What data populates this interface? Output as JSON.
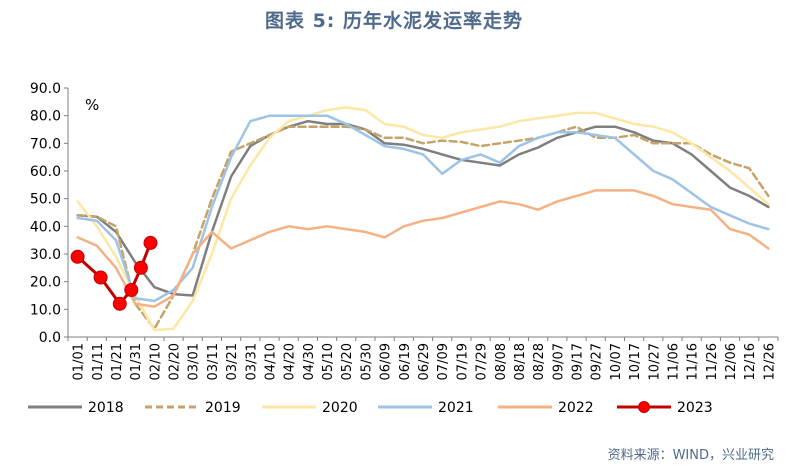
{
  "chart_data": {
    "type": "line",
    "title": "图表 5:  历年水泥发运率走势",
    "ylabel": "%",
    "xlabel": "",
    "ylim": [
      0,
      90
    ],
    "yticks": [
      0,
      10,
      20,
      30,
      40,
      50,
      60,
      70,
      80,
      90
    ],
    "ytick_labels": [
      "0.0",
      "10.0",
      "20.0",
      "30.0",
      "40.0",
      "50.0",
      "60.0",
      "70.0",
      "80.0",
      "90.0"
    ],
    "x_labels": [
      "01/01",
      "01/11",
      "01/21",
      "01/31",
      "02/10",
      "02/20",
      "03/01",
      "03/11",
      "03/21",
      "03/31",
      "04/10",
      "04/20",
      "04/30",
      "05/10",
      "05/20",
      "05/30",
      "06/09",
      "06/19",
      "06/29",
      "07/09",
      "07/19",
      "07/29",
      "08/08",
      "08/18",
      "08/28",
      "09/07",
      "09/17",
      "09/27",
      "10/07",
      "10/17",
      "10/27",
      "11/06",
      "11/16",
      "11/26",
      "12/06",
      "12/16",
      "12/26"
    ],
    "legend_position": "bottom",
    "grid": false,
    "series": [
      {
        "name": "2018",
        "color": "#7f7f7f",
        "dash": "solid",
        "marker": false,
        "points": [
          [
            0,
            44
          ],
          [
            1,
            43.5
          ],
          [
            2,
            38
          ],
          [
            3,
            27
          ],
          [
            4,
            18
          ],
          [
            5,
            15.5
          ],
          [
            6,
            15
          ],
          [
            7,
            38
          ],
          [
            8,
            58
          ],
          [
            9,
            69
          ],
          [
            10,
            73
          ],
          [
            11,
            76
          ],
          [
            12,
            78
          ],
          [
            13,
            77
          ],
          [
            14,
            77
          ],
          [
            15,
            75
          ],
          [
            16,
            70
          ],
          [
            17,
            69.5
          ],
          [
            18,
            68
          ],
          [
            19,
            66
          ],
          [
            20,
            64
          ],
          [
            21,
            63
          ],
          [
            22,
            62
          ],
          [
            23,
            66
          ],
          [
            24,
            68.5
          ],
          [
            25,
            72
          ],
          [
            26,
            74
          ],
          [
            27,
            76
          ],
          [
            28,
            76
          ],
          [
            29,
            74
          ],
          [
            30,
            71
          ],
          [
            31,
            70
          ],
          [
            32,
            66
          ],
          [
            33,
            60
          ],
          [
            34,
            54
          ],
          [
            35,
            51
          ],
          [
            36,
            47
          ]
        ]
      },
      {
        "name": "2019",
        "color": "#c5a46b",
        "dash": "dashed",
        "marker": false,
        "points": [
          [
            0,
            44
          ],
          [
            1,
            43.5
          ],
          [
            2,
            40
          ],
          [
            3,
            12
          ],
          [
            4,
            3
          ],
          [
            5,
            15
          ],
          [
            6,
            30
          ],
          [
            7,
            50
          ],
          [
            8,
            67
          ],
          [
            9,
            70
          ],
          [
            10,
            73
          ],
          [
            11,
            76
          ],
          [
            12,
            76
          ],
          [
            13,
            76
          ],
          [
            14,
            76
          ],
          [
            15,
            75
          ],
          [
            16,
            72
          ],
          [
            17,
            72
          ],
          [
            18,
            70
          ],
          [
            19,
            71
          ],
          [
            20,
            70.5
          ],
          [
            21,
            69
          ],
          [
            22,
            70
          ],
          [
            23,
            71
          ],
          [
            24,
            72
          ],
          [
            25,
            74
          ],
          [
            26,
            76
          ],
          [
            27,
            72
          ],
          [
            28,
            72
          ],
          [
            29,
            73
          ],
          [
            30,
            70
          ],
          [
            31,
            70
          ],
          [
            32,
            70
          ],
          [
            33,
            66
          ],
          [
            34,
            63
          ],
          [
            35,
            61
          ],
          [
            36,
            51
          ]
        ]
      },
      {
        "name": "2020",
        "color": "#fce7a5",
        "dash": "solid",
        "marker": false,
        "points": [
          [
            0,
            49
          ],
          [
            1,
            40
          ],
          [
            2,
            29
          ],
          [
            3,
            15
          ],
          [
            4,
            2.5
          ],
          [
            5,
            3
          ],
          [
            6,
            13
          ],
          [
            7,
            30
          ],
          [
            8,
            50
          ],
          [
            9,
            62
          ],
          [
            10,
            72
          ],
          [
            11,
            78
          ],
          [
            12,
            80
          ],
          [
            13,
            82
          ],
          [
            14,
            83
          ],
          [
            15,
            82
          ],
          [
            16,
            77
          ],
          [
            17,
            76
          ],
          [
            18,
            73
          ],
          [
            19,
            72
          ],
          [
            20,
            74
          ],
          [
            21,
            75
          ],
          [
            22,
            76
          ],
          [
            23,
            78
          ],
          [
            24,
            79
          ],
          [
            25,
            80
          ],
          [
            26,
            81
          ],
          [
            27,
            81
          ],
          [
            28,
            79
          ],
          [
            29,
            77
          ],
          [
            30,
            76
          ],
          [
            31,
            74
          ],
          [
            32,
            70
          ],
          [
            33,
            65
          ],
          [
            34,
            60
          ],
          [
            35,
            54
          ],
          [
            36,
            48
          ]
        ]
      },
      {
        "name": "2021",
        "color": "#9dc3e6",
        "dash": "solid",
        "marker": false,
        "points": [
          [
            0,
            43
          ],
          [
            1,
            42
          ],
          [
            2,
            35
          ],
          [
            3,
            14
          ],
          [
            4,
            13
          ],
          [
            5,
            17
          ],
          [
            6,
            25
          ],
          [
            7,
            47
          ],
          [
            8,
            65
          ],
          [
            9,
            78
          ],
          [
            10,
            80
          ],
          [
            11,
            80
          ],
          [
            12,
            80
          ],
          [
            13,
            80
          ],
          [
            14,
            77
          ],
          [
            15,
            73
          ],
          [
            16,
            69
          ],
          [
            17,
            68
          ],
          [
            18,
            66
          ],
          [
            19,
            59
          ],
          [
            20,
            64
          ],
          [
            21,
            66
          ],
          [
            22,
            63
          ],
          [
            23,
            69
          ],
          [
            24,
            72
          ],
          [
            25,
            74
          ],
          [
            26,
            74
          ],
          [
            27,
            73
          ],
          [
            28,
            72
          ],
          [
            29,
            66
          ],
          [
            30,
            60
          ],
          [
            31,
            57
          ],
          [
            32,
            52
          ],
          [
            33,
            47
          ],
          [
            34,
            44
          ],
          [
            35,
            41
          ],
          [
            36,
            39
          ]
        ]
      },
      {
        "name": "2022",
        "color": "#f4b183",
        "dash": "solid",
        "marker": false,
        "points": [
          [
            0,
            36
          ],
          [
            1,
            33
          ],
          [
            2,
            25
          ],
          [
            3,
            12
          ],
          [
            4,
            11
          ],
          [
            5,
            15
          ],
          [
            6,
            30
          ],
          [
            7,
            38
          ],
          [
            8,
            32
          ],
          [
            9,
            35
          ],
          [
            10,
            38
          ],
          [
            11,
            40
          ],
          [
            12,
            39
          ],
          [
            13,
            40
          ],
          [
            14,
            39
          ],
          [
            15,
            38
          ],
          [
            16,
            36
          ],
          [
            17,
            40
          ],
          [
            18,
            42
          ],
          [
            19,
            43
          ],
          [
            20,
            45
          ],
          [
            21,
            47
          ],
          [
            22,
            49
          ],
          [
            23,
            48
          ],
          [
            24,
            46
          ],
          [
            25,
            49
          ],
          [
            26,
            51
          ],
          [
            27,
            53
          ],
          [
            28,
            53
          ],
          [
            29,
            53
          ],
          [
            30,
            51
          ],
          [
            31,
            48
          ],
          [
            32,
            47
          ],
          [
            33,
            46
          ],
          [
            34,
            39
          ],
          [
            35,
            37
          ],
          [
            36,
            32
          ]
        ]
      },
      {
        "name": "2023",
        "color": "#c00000",
        "dash": "solid",
        "marker": true,
        "points": [
          [
            0,
            29
          ],
          [
            1.2,
            21.5
          ],
          [
            2.2,
            12
          ],
          [
            2.8,
            17
          ],
          [
            3.3,
            25
          ],
          [
            3.8,
            34
          ]
        ]
      }
    ]
  },
  "legend_labels": [
    "2018",
    "2019",
    "2020",
    "2021",
    "2022",
    "2023"
  ],
  "source": "资料来源：WIND，兴业研究"
}
